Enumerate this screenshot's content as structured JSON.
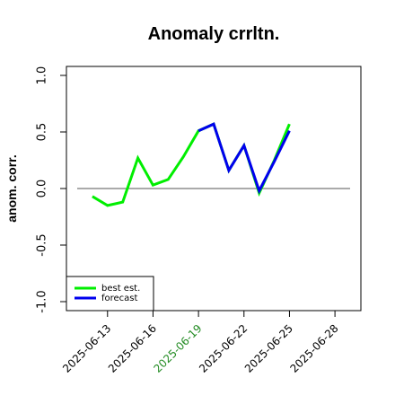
{
  "chart_data": {
    "type": "line",
    "title": "Anomaly crrltn.",
    "ylabel": "anom. corr.",
    "xlabel": "",
    "ylim": [
      -1.0,
      1.0
    ],
    "yticks": [
      -1.0,
      -0.5,
      0.0,
      0.5,
      1.0
    ],
    "ytick_labels": [
      "-1.0",
      "-0.5",
      "0.0",
      "0.5",
      "1.0"
    ],
    "xlim": [
      "2025-06-11",
      "2025-06-29"
    ],
    "xticks": [
      {
        "date": "2025-06-13",
        "label": "2025-06-13",
        "color": "#000000"
      },
      {
        "date": "2025-06-16",
        "label": "2025-06-16",
        "color": "#000000"
      },
      {
        "date": "2025-06-19",
        "label": "2025-06-19",
        "color": "#228b22"
      },
      {
        "date": "2025-06-22",
        "label": "2025-06-22",
        "color": "#000000"
      },
      {
        "date": "2025-06-25",
        "label": "2025-06-25",
        "color": "#000000"
      },
      {
        "date": "2025-06-28",
        "label": "2025-06-28",
        "color": "#000000"
      }
    ],
    "reference_line": 0.0,
    "grid": false,
    "legend_position": "bottom-left",
    "series": [
      {
        "name": "best est.",
        "color": "#00ee00",
        "points": [
          {
            "x": "2025-06-12",
            "y": -0.07
          },
          {
            "x": "2025-06-13",
            "y": -0.15
          },
          {
            "x": "2025-06-14",
            "y": -0.12
          },
          {
            "x": "2025-06-15",
            "y": 0.27
          },
          {
            "x": "2025-06-16",
            "y": 0.03
          },
          {
            "x": "2025-06-17",
            "y": 0.08
          },
          {
            "x": "2025-06-18",
            "y": 0.28
          },
          {
            "x": "2025-06-19",
            "y": 0.51
          },
          {
            "x": "2025-06-20",
            "y": 0.57
          },
          {
            "x": "2025-06-21",
            "y": 0.16
          },
          {
            "x": "2025-06-22",
            "y": 0.38
          },
          {
            "x": "2025-06-23",
            "y": -0.04
          },
          {
            "x": "2025-06-24",
            "y": 0.25
          },
          {
            "x": "2025-06-25",
            "y": 0.57
          }
        ]
      },
      {
        "name": "forecast",
        "color": "#0000ee",
        "points": [
          {
            "x": "2025-06-19",
            "y": 0.51
          },
          {
            "x": "2025-06-20",
            "y": 0.57
          },
          {
            "x": "2025-06-21",
            "y": 0.16
          },
          {
            "x": "2025-06-22",
            "y": 0.38
          },
          {
            "x": "2025-06-23",
            "y": -0.02
          },
          {
            "x": "2025-06-24",
            "y": 0.24
          },
          {
            "x": "2025-06-25",
            "y": 0.51
          }
        ]
      }
    ]
  }
}
